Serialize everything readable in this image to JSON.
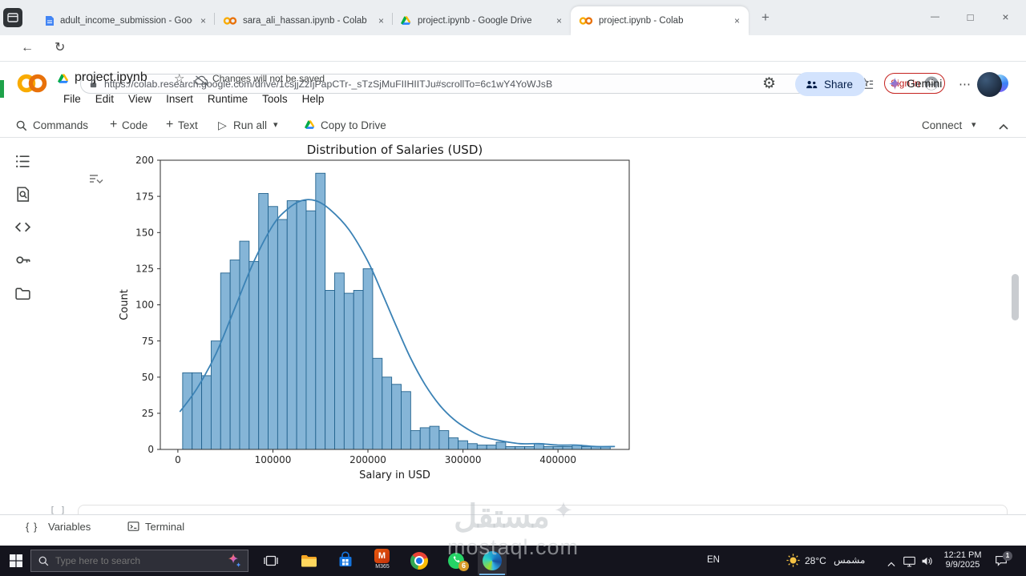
{
  "browser": {
    "tabs": [
      {
        "title": "adult_income_submission - Goog"
      },
      {
        "title": "sara_ali_hassan.ipynb - Colab"
      },
      {
        "title": "project.ipynb - Google Drive"
      },
      {
        "title": "project.ipynb - Colab"
      }
    ],
    "url": "https://colab.research.google.com/drive/1csjjZzIjPapCTr-_sTzSjMuFIIHIITJu#scrollTo=6c1wY4YoWJsB",
    "sign_in": "Sign in"
  },
  "colab": {
    "title": "project.ipynb",
    "save_status": "Changes will not be saved",
    "menus": [
      "File",
      "Edit",
      "View",
      "Insert",
      "Runtime",
      "Tools",
      "Help"
    ],
    "share": "Share",
    "gemini": "Gemini",
    "toolbar": {
      "commands": "Commands",
      "code": "Code",
      "text": "Text",
      "run_all": "Run all",
      "copy_to_drive": "Copy to Drive",
      "connect": "Connect"
    },
    "next_cell_prompt": "[ ]",
    "bottom": {
      "variables": "Variables",
      "terminal": "Terminal"
    }
  },
  "chart_data": {
    "type": "histogram",
    "title": "Distribution of Salaries (USD)",
    "xlabel": "Salary in USD",
    "ylabel": "Count",
    "xlim": [
      -18500,
      475000
    ],
    "ylim": [
      0,
      200
    ],
    "xticks": [
      0,
      100000,
      200000,
      300000,
      400000
    ],
    "yticks": [
      0,
      25,
      50,
      75,
      100,
      125,
      150,
      175,
      200
    ],
    "bin_start": 5000,
    "bin_width": 10000,
    "counts": [
      53,
      53,
      51,
      75,
      122,
      131,
      144,
      130,
      177,
      168,
      159,
      172,
      172,
      165,
      191,
      110,
      122,
      108,
      110,
      125,
      63,
      50,
      45,
      40,
      13,
      15,
      16,
      13,
      8,
      6,
      4,
      3,
      3,
      5,
      2,
      2,
      2,
      4,
      2,
      2,
      2,
      3,
      2,
      2,
      2
    ],
    "kde": [
      [
        2000,
        26
      ],
      [
        20000,
        42
      ],
      [
        40000,
        66
      ],
      [
        60000,
        98
      ],
      [
        80000,
        130
      ],
      [
        100000,
        155
      ],
      [
        115000,
        166
      ],
      [
        130000,
        172
      ],
      [
        145000,
        172
      ],
      [
        160000,
        166
      ],
      [
        180000,
        152
      ],
      [
        200000,
        130
      ],
      [
        215000,
        108
      ],
      [
        230000,
        85
      ],
      [
        245000,
        63
      ],
      [
        260000,
        45
      ],
      [
        275000,
        31
      ],
      [
        290000,
        21
      ],
      [
        305000,
        14
      ],
      [
        320000,
        9
      ],
      [
        340000,
        6
      ],
      [
        360000,
        4
      ],
      [
        380000,
        4
      ],
      [
        400000,
        3
      ],
      [
        420000,
        3
      ],
      [
        440000,
        2
      ],
      [
        460000,
        2
      ]
    ],
    "colors": {
      "bar_fill": "#85b5d7",
      "bar_edge": "#23638e",
      "kde_line": "#3b82b5"
    },
    "legend": "off",
    "grid": "off"
  },
  "watermark": {
    "name": "مستقل",
    "domain": "mostaql.com"
  },
  "taskbar": {
    "search_placeholder": "Type here to search",
    "language": "EN",
    "temperature": "28°C",
    "condition": "مشمس",
    "time": "12:21 PM",
    "date": "9/9/2025",
    "whatsapp_badge": "6",
    "m365_label": "M365",
    "notification_count": "1"
  },
  "icons": {
    "plus": "+",
    "close": "×",
    "minimize": "—",
    "maximize": "□",
    "back": "←",
    "refresh": "↻",
    "star": "☆",
    "gear": "⚙",
    "caret": "▾",
    "dots": "⋯",
    "braces": "{ }",
    "read_aloud_a": "A",
    "read_aloud_waves": "))"
  }
}
